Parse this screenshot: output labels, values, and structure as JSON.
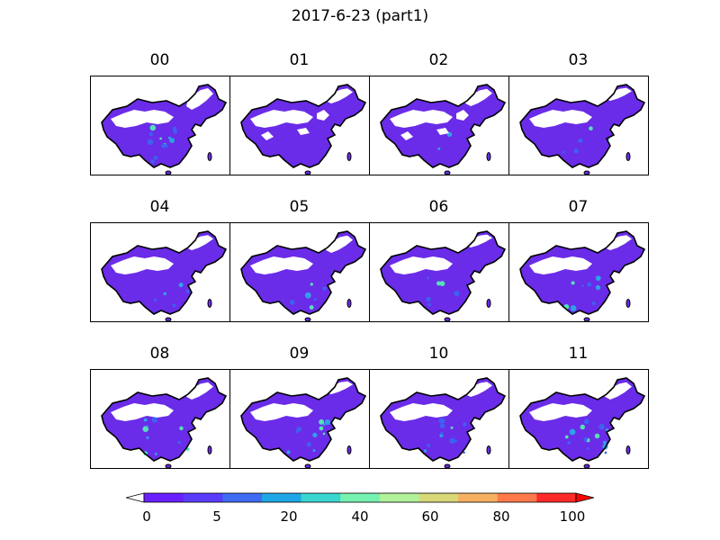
{
  "figure": {
    "title": "2017-6-23 (part1)"
  },
  "panels": [
    {
      "label": "00",
      "intensity": 0.35
    },
    {
      "label": "01",
      "intensity": 0.0
    },
    {
      "label": "02",
      "intensity": 0.05
    },
    {
      "label": "03",
      "intensity": 0.12
    },
    {
      "label": "04",
      "intensity": 0.12
    },
    {
      "label": "05",
      "intensity": 0.15
    },
    {
      "label": "06",
      "intensity": 0.15
    },
    {
      "label": "07",
      "intensity": 0.2
    },
    {
      "label": "08",
      "intensity": 0.25
    },
    {
      "label": "09",
      "intensity": 0.3
    },
    {
      "label": "10",
      "intensity": 0.3
    },
    {
      "label": "11",
      "intensity": 0.35
    }
  ],
  "colorbar": {
    "tick_labels": [
      "0",
      "5",
      "20",
      "40",
      "60",
      "80",
      "100"
    ],
    "colors": [
      "#6a1fff",
      "#5a3cff",
      "#3e6bf2",
      "#1fa6e6",
      "#3ad6d0",
      "#75f2b0",
      "#b2f29b",
      "#d8d878",
      "#f7b060",
      "#ff7a4a",
      "#ff2a2a"
    ],
    "under_color": "#ffffff",
    "over_color": "#ff0000"
  }
}
